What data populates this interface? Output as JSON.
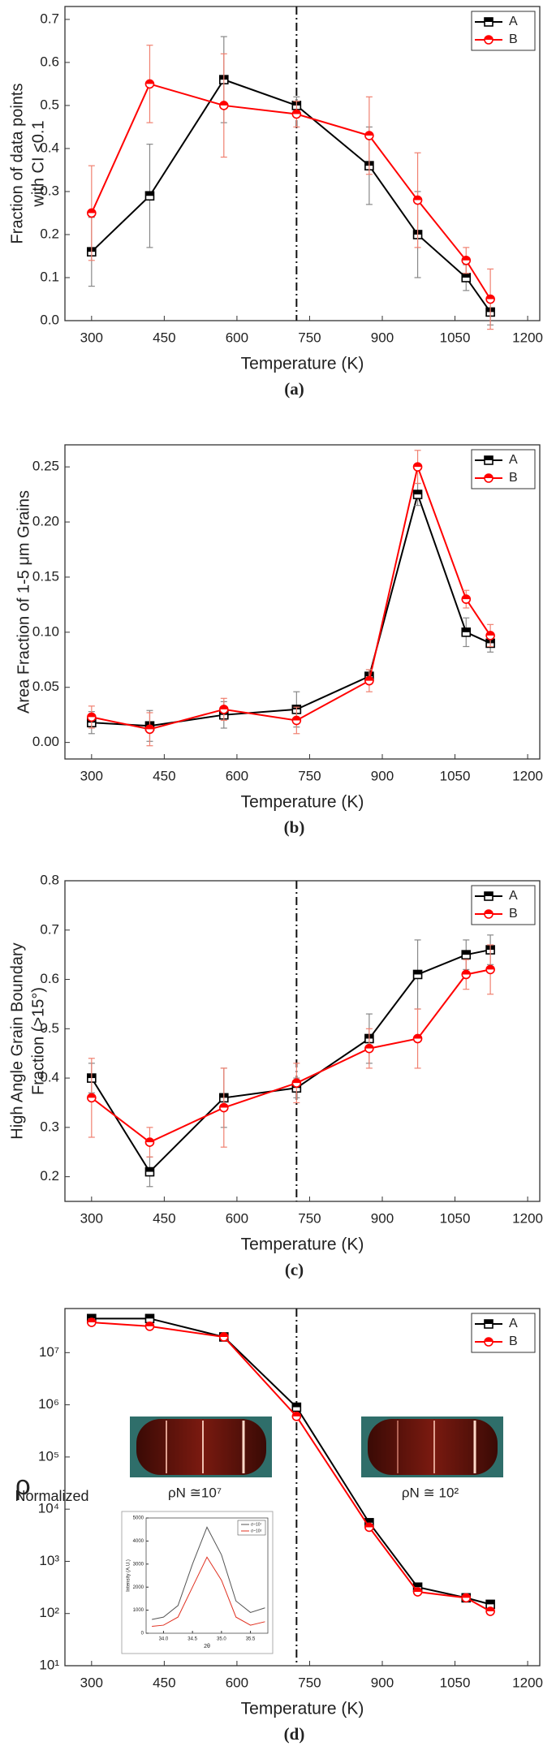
{
  "chart_data": [
    {
      "type": "line",
      "label": "(a)",
      "x_label": "Temperature (K)",
      "y_label": [
        "Fraction of data points",
        "with CI <0.1"
      ],
      "x": [
        300,
        420,
        573,
        723,
        873,
        973,
        1073,
        1123
      ],
      "series": [
        {
          "name": "A",
          "color": "#000000",
          "marker": "square",
          "values": [
            0.16,
            0.29,
            0.56,
            0.5,
            0.36,
            0.2,
            0.1,
            0.02
          ],
          "errors": [
            0.08,
            0.12,
            0.1,
            0.02,
            0.09,
            0.1,
            0.03,
            0.03
          ]
        },
        {
          "name": "B",
          "color": "#ff0000",
          "marker": "circle",
          "values": [
            0.25,
            0.55,
            0.5,
            0.48,
            0.43,
            0.28,
            0.14,
            0.05
          ],
          "errors": [
            0.11,
            0.09,
            0.12,
            0.03,
            0.09,
            0.11,
            0.03,
            0.07
          ]
        }
      ],
      "xlim": [
        245,
        1225
      ],
      "xticks": [
        300,
        450,
        600,
        750,
        900,
        1050,
        1200
      ],
      "ylim": [
        0,
        0.73
      ],
      "yticks": [
        {
          "value": 0,
          "label": "0.0"
        },
        0.1,
        0.2,
        0.3,
        0.4,
        0.5,
        0.6,
        0.7
      ],
      "vline": 723,
      "legend": "upper right",
      "grid": false
    },
    {
      "type": "line",
      "label": "(b)",
      "x_label": "Temperature (K)",
      "y_label": [
        "Area Fraction of 1-5 μm Grains"
      ],
      "x": [
        300,
        420,
        573,
        723,
        873,
        973,
        1073,
        1123
      ],
      "series": [
        {
          "name": "A",
          "color": "#000000",
          "marker": "square",
          "values": [
            0.018,
            0.015,
            0.025,
            0.03,
            0.06,
            0.225,
            0.1,
            0.09
          ],
          "errors": [
            0.01,
            0.014,
            0.012,
            0.016,
            0.006,
            0.01,
            0.013,
            0.008
          ]
        },
        {
          "name": "B",
          "color": "#ff0000",
          "marker": "circle",
          "values": [
            0.023,
            0.012,
            0.03,
            0.02,
            0.056,
            0.25,
            0.13,
            0.097
          ],
          "errors": [
            0.01,
            0.015,
            0.01,
            0.012,
            0.01,
            0.015,
            0.008,
            0.01
          ]
        }
      ],
      "xlim": [
        245,
        1225
      ],
      "xticks": [
        300,
        450,
        600,
        750,
        900,
        1050,
        1200
      ],
      "ylim": [
        -0.015,
        0.27
      ],
      "yticks": [
        {
          "value": 0,
          "label": "0.00"
        },
        0.05,
        {
          "value": 0.1,
          "label": "0.10"
        },
        0.15,
        {
          "value": 0.2,
          "label": "0.20"
        },
        0.25
      ],
      "legend": "upper right",
      "grid": false
    },
    {
      "type": "line",
      "label": "(c)",
      "x_label": "Temperature (K)",
      "y_label": [
        "High Angle Grain Boundary",
        "Fraction (>15°)"
      ],
      "x": [
        300,
        420,
        573,
        723,
        873,
        973,
        1073,
        1123
      ],
      "series": [
        {
          "name": "A",
          "color": "#000000",
          "marker": "square",
          "values": [
            0.4,
            0.21,
            0.36,
            0.38,
            0.48,
            0.61,
            0.65,
            0.66
          ],
          "errors": [
            0.03,
            0.03,
            0.06,
            0.02,
            0.05,
            0.07,
            0.03,
            0.03
          ]
        },
        {
          "name": "B",
          "color": "#ff0000",
          "marker": "circle",
          "values": [
            0.36,
            0.27,
            0.34,
            0.39,
            0.46,
            0.48,
            0.61,
            0.62
          ],
          "errors": [
            0.08,
            0.03,
            0.08,
            0.04,
            0.04,
            0.06,
            0.03,
            0.05
          ]
        }
      ],
      "xlim": [
        245,
        1225
      ],
      "xticks": [
        300,
        450,
        600,
        750,
        900,
        1050,
        1200
      ],
      "ylim": [
        0.15,
        0.8
      ],
      "yticks": [
        0.2,
        0.3,
        0.4,
        0.5,
        0.6,
        0.7,
        0.8
      ],
      "vline": 723,
      "legend": "upper right",
      "grid": false
    },
    {
      "type": "line",
      "label": "(d)",
      "x_label": "Temperature (K)",
      "y_label": [
        "ρ"
      ],
      "y_label_sub": "Normalized",
      "x": [
        300,
        420,
        573,
        723,
        873,
        973,
        1073,
        1123
      ],
      "series": [
        {
          "name": "A",
          "color": "#000000",
          "marker": "square",
          "values": [
            45000000,
            45000000,
            20000000,
            900000,
            5500,
            320,
            200,
            150
          ]
        },
        {
          "name": "B",
          "color": "#ff0000",
          "marker": "circle",
          "values": [
            38000000,
            32000000,
            20000000,
            600000,
            4500,
            260,
            200,
            110
          ]
        }
      ],
      "xlim": [
        245,
        1225
      ],
      "xticks": [
        300,
        450,
        600,
        750,
        900,
        1050,
        1200
      ],
      "log_y": true,
      "ylim": [
        10,
        70000000
      ],
      "yticks": [
        {
          "value": 10,
          "label": "10¹"
        },
        {
          "value": 100,
          "label": "10²"
        },
        {
          "value": 1000,
          "label": "10³"
        },
        {
          "value": 10000,
          "label": "10⁴"
        },
        {
          "value": 100000,
          "label": "10⁵"
        },
        {
          "value": 1000000,
          "label": "10⁶"
        },
        {
          "value": 10000000,
          "label": "10⁷"
        }
      ],
      "vline": 723,
      "annotations": [
        "ρN ≅10⁷",
        "ρN ≅ 10²"
      ],
      "legend": "upper right",
      "grid": false
    },
    {
      "type": "line",
      "inset": true,
      "x_label": "2θ",
      "y_label": [
        "Intensity (A.U.)"
      ],
      "x": [
        33.8,
        34.0,
        34.25,
        34.5,
        34.75,
        35.0,
        35.25,
        35.5,
        35.75
      ],
      "series": [
        {
          "name": "σ~10⁷",
          "color": "#555555",
          "values": [
            600,
            700,
            1200,
            3000,
            4600,
            3400,
            1400,
            900,
            1100
          ]
        },
        {
          "name": "σ~10²",
          "color": "#e03020",
          "values": [
            300,
            350,
            700,
            2000,
            3300,
            2300,
            700,
            350,
            500
          ]
        }
      ],
      "xlim": [
        33.7,
        35.8
      ],
      "xticks": [
        {
          "value": 34,
          "label": "34.0"
        },
        34.5,
        {
          "value": 35,
          "label": "35.0"
        },
        35.5
      ],
      "ylim": [
        0,
        5000
      ],
      "yticks": [
        0,
        1000,
        2000,
        3000,
        4000,
        5000
      ],
      "legend": "upper right",
      "grid": false
    }
  ]
}
